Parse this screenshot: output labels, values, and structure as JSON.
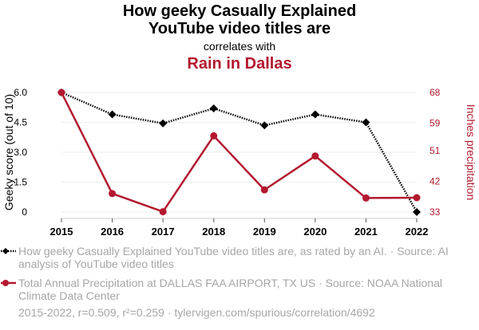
{
  "title_line1": "How geeky Casually Explained",
  "title_line2": "YouTube video titles are",
  "subtitle": "correlates with",
  "title_line3": "Rain in Dallas",
  "colors": {
    "series1": "#000000",
    "series2": "#b3182f",
    "grid": "#eeeeee",
    "legend_text": "#a6a6a6"
  },
  "chart_data": {
    "type": "line",
    "x": [
      2015,
      2016,
      2017,
      2018,
      2019,
      2020,
      2021,
      2022
    ],
    "x_tick_labels": [
      "2015",
      "2016",
      "2017",
      "2018",
      "2019",
      "2020",
      "2021",
      "2022"
    ],
    "series": [
      {
        "name": "How geeky Casually Explained YouTube video titles are, as rated by an AI.",
        "axis": "left",
        "color": "#000000",
        "style": "dotted",
        "marker": "diamond",
        "values": [
          6.0,
          4.9,
          4.45,
          5.2,
          4.35,
          4.9,
          4.5,
          0.0
        ]
      },
      {
        "name": "Total Annual Precipitation at DALLAS FAA AIRPORT, TX US",
        "axis": "right",
        "color": "#b3182f",
        "style": "solid",
        "marker": "circle",
        "values": [
          68,
          38.4,
          33.1,
          55.3,
          39.5,
          49.4,
          37.1,
          37.2
        ]
      }
    ],
    "y_left": {
      "label": "Geeky score (out of 10)",
      "range": [
        0,
        6
      ],
      "ticks": [
        0,
        1.5,
        3,
        4.5,
        6
      ],
      "tick_labels": [
        "0",
        "1.5",
        "3.0",
        "4.5",
        "6.0"
      ]
    },
    "y_right": {
      "label": "Inches precipitation",
      "range": [
        33,
        68
      ],
      "ticks": [
        33,
        42,
        51,
        59,
        68
      ],
      "tick_labels": [
        "33",
        "42",
        "51",
        "59",
        "68"
      ]
    }
  },
  "legend": {
    "item1": "How geeky Casually Explained YouTube video titles are, as rated by an AI. · Source: AI analysis of YouTube video titles",
    "item2": "Total Annual Precipitation at DALLAS FAA AIRPORT, TX US · Source: NOAA National Climate Data Center"
  },
  "footer": "2015-2022, r=0.509, r²=0.259 · tylervigen.com/spurious/correlation/4692"
}
